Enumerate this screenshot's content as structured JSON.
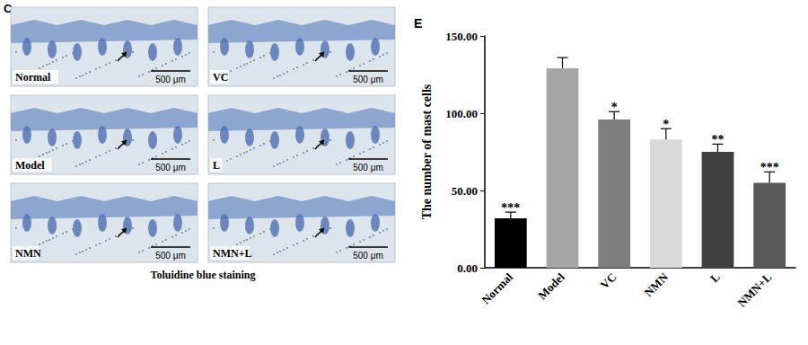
{
  "micrographs": {
    "panel_label": "C",
    "caption": "Toluidine blue staining",
    "panels": [
      {
        "label": "Normal",
        "scale_bar": "500 μm"
      },
      {
        "label": "VC",
        "scale_bar": "500 μm"
      },
      {
        "label": "Model",
        "scale_bar": "500 μm"
      },
      {
        "label": "L",
        "scale_bar": "500 μm"
      },
      {
        "label": "NMN",
        "scale_bar": "500 μm"
      },
      {
        "label": "NMN+L",
        "scale_bar": "500 μm"
      }
    ]
  },
  "chart_data": {
    "type": "bar",
    "title": "E",
    "y_label": "The number of mast cells",
    "categories": [
      "Normal",
      "Model",
      "VC",
      "NMN",
      "L",
      "NMN+L"
    ],
    "values": [
      32,
      129,
      96,
      83,
      75,
      55
    ],
    "error": [
      4,
      7,
      5,
      7,
      5,
      7
    ],
    "significance": [
      "***",
      null,
      "*",
      "*",
      "**",
      "***"
    ],
    "colors": [
      "#000000",
      "#a6a6a6",
      "#7f7f7f",
      "#d9d9d9",
      "#404040",
      "#595959"
    ],
    "ylim": [
      0,
      150
    ],
    "yticks": [
      {
        "value": 0,
        "label": "0.00"
      },
      {
        "value": 50,
        "label": "50.00"
      },
      {
        "value": 100,
        "label": "100.00"
      },
      {
        "value": 150,
        "label": "150.00"
      }
    ],
    "grid": false
  }
}
